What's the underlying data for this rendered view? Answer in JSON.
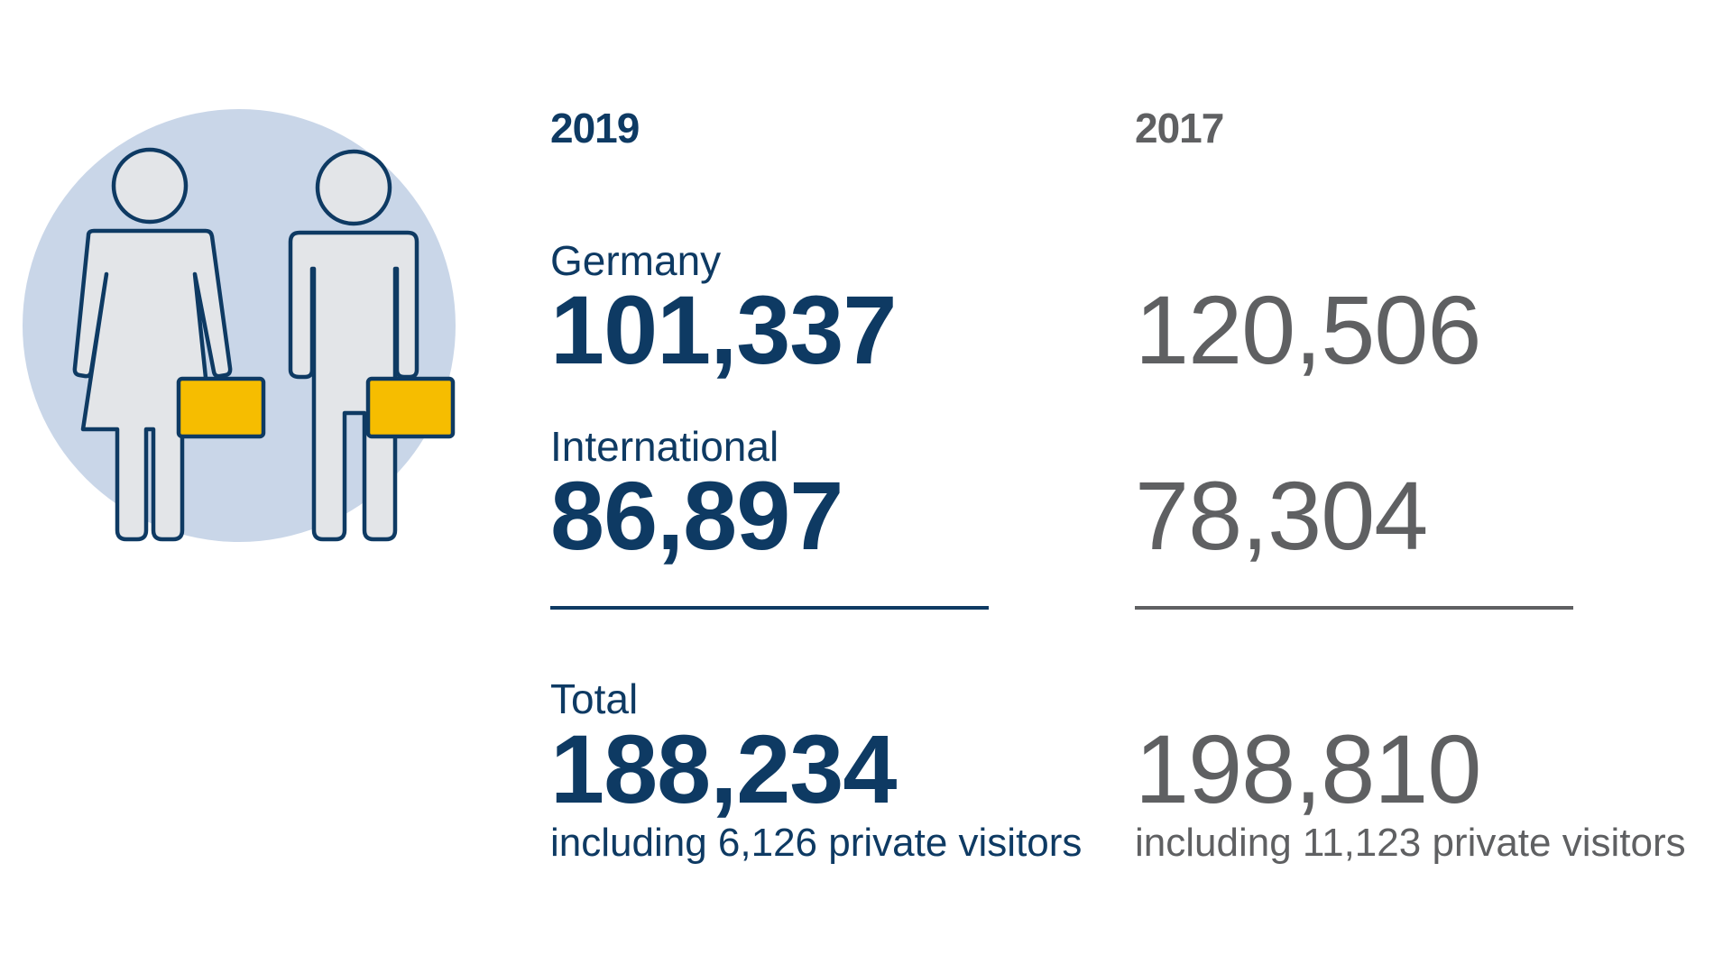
{
  "colors": {
    "primary_blue": "#0e3a63",
    "secondary_gray": "#5f6062",
    "circle_background": "#c9d6e8",
    "figure_fill": "#e3e5e8",
    "briefcase_yellow": "#f6bd00"
  },
  "illustration": {
    "icon": "visitors-icon"
  },
  "current": {
    "year": "2019",
    "germany_label": "Germany",
    "germany_value": "101,337",
    "international_label": "International",
    "international_value": "86,897",
    "total_label": "Total",
    "total_value": "188,234",
    "note": "including 6,126 private visitors"
  },
  "previous": {
    "year": "2017",
    "germany_value": "120,506",
    "international_value": "78,304",
    "total_value": "198,810",
    "note": "including 11,123 private visitors"
  }
}
